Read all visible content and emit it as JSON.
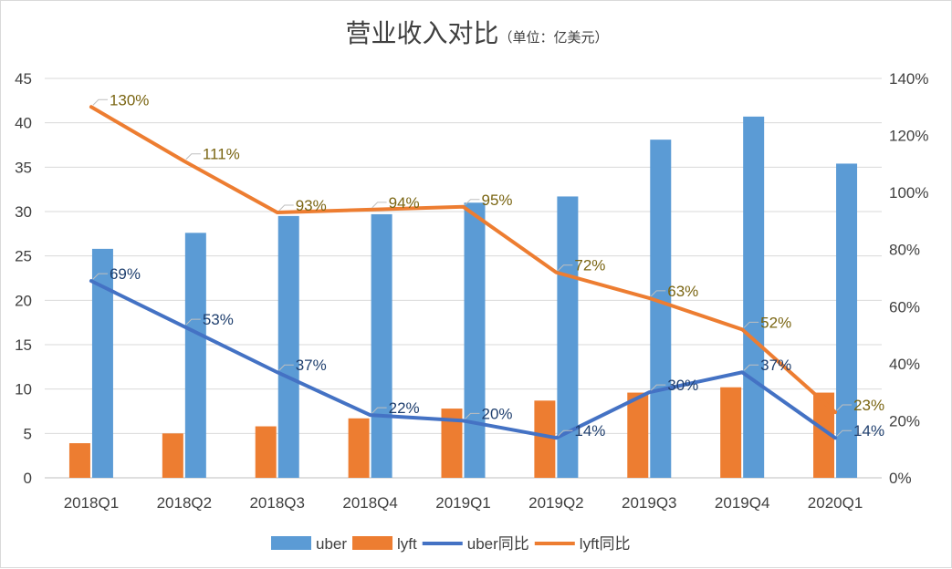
{
  "chart_data": {
    "type": "bar",
    "title": "营业收入对比",
    "subtitle": "（单位：亿美元）",
    "categories": [
      "2018Q1",
      "2018Q2",
      "2018Q3",
      "2018Q4",
      "2019Q1",
      "2019Q2",
      "2019Q3",
      "2019Q4",
      "2020Q1"
    ],
    "series": [
      {
        "name": "uber",
        "kind": "bar",
        "axis": "left",
        "color": "#5b9bd5",
        "values": [
          25.8,
          27.6,
          29.5,
          29.7,
          31.0,
          31.7,
          38.1,
          40.7,
          35.4
        ]
      },
      {
        "name": "lyft",
        "kind": "bar",
        "axis": "left",
        "color": "#ed7d31",
        "values": [
          3.9,
          5.0,
          5.8,
          6.7,
          7.8,
          8.7,
          9.6,
          10.2,
          9.6
        ]
      },
      {
        "name": "uber同比",
        "kind": "line",
        "axis": "right",
        "color": "#4472c4",
        "values": [
          69,
          53,
          37,
          22,
          20,
          14,
          30,
          37,
          14
        ],
        "labels": [
          "69%",
          "53%",
          "37%",
          "22%",
          "20%",
          "14%",
          "30%",
          "37%",
          "14%"
        ]
      },
      {
        "name": "lyft同比",
        "kind": "line",
        "axis": "right",
        "color": "#ed7d31",
        "values": [
          130,
          111,
          93,
          94,
          95,
          72,
          63,
          52,
          23
        ],
        "labels": [
          "130%",
          "111%",
          "93%",
          "94%",
          "95%",
          "72%",
          "63%",
          "52%",
          "23%"
        ]
      }
    ],
    "ylim": [
      0,
      45
    ],
    "y_ticks": [
      "0",
      "5",
      "10",
      "15",
      "20",
      "25",
      "30",
      "35",
      "40",
      "45"
    ],
    "y2lim": [
      0,
      140
    ],
    "y2_ticks": [
      "0%",
      "20%",
      "40%",
      "60%",
      "80%",
      "100%",
      "120%",
      "140%"
    ],
    "grid": true,
    "legend_position": "bottom"
  }
}
